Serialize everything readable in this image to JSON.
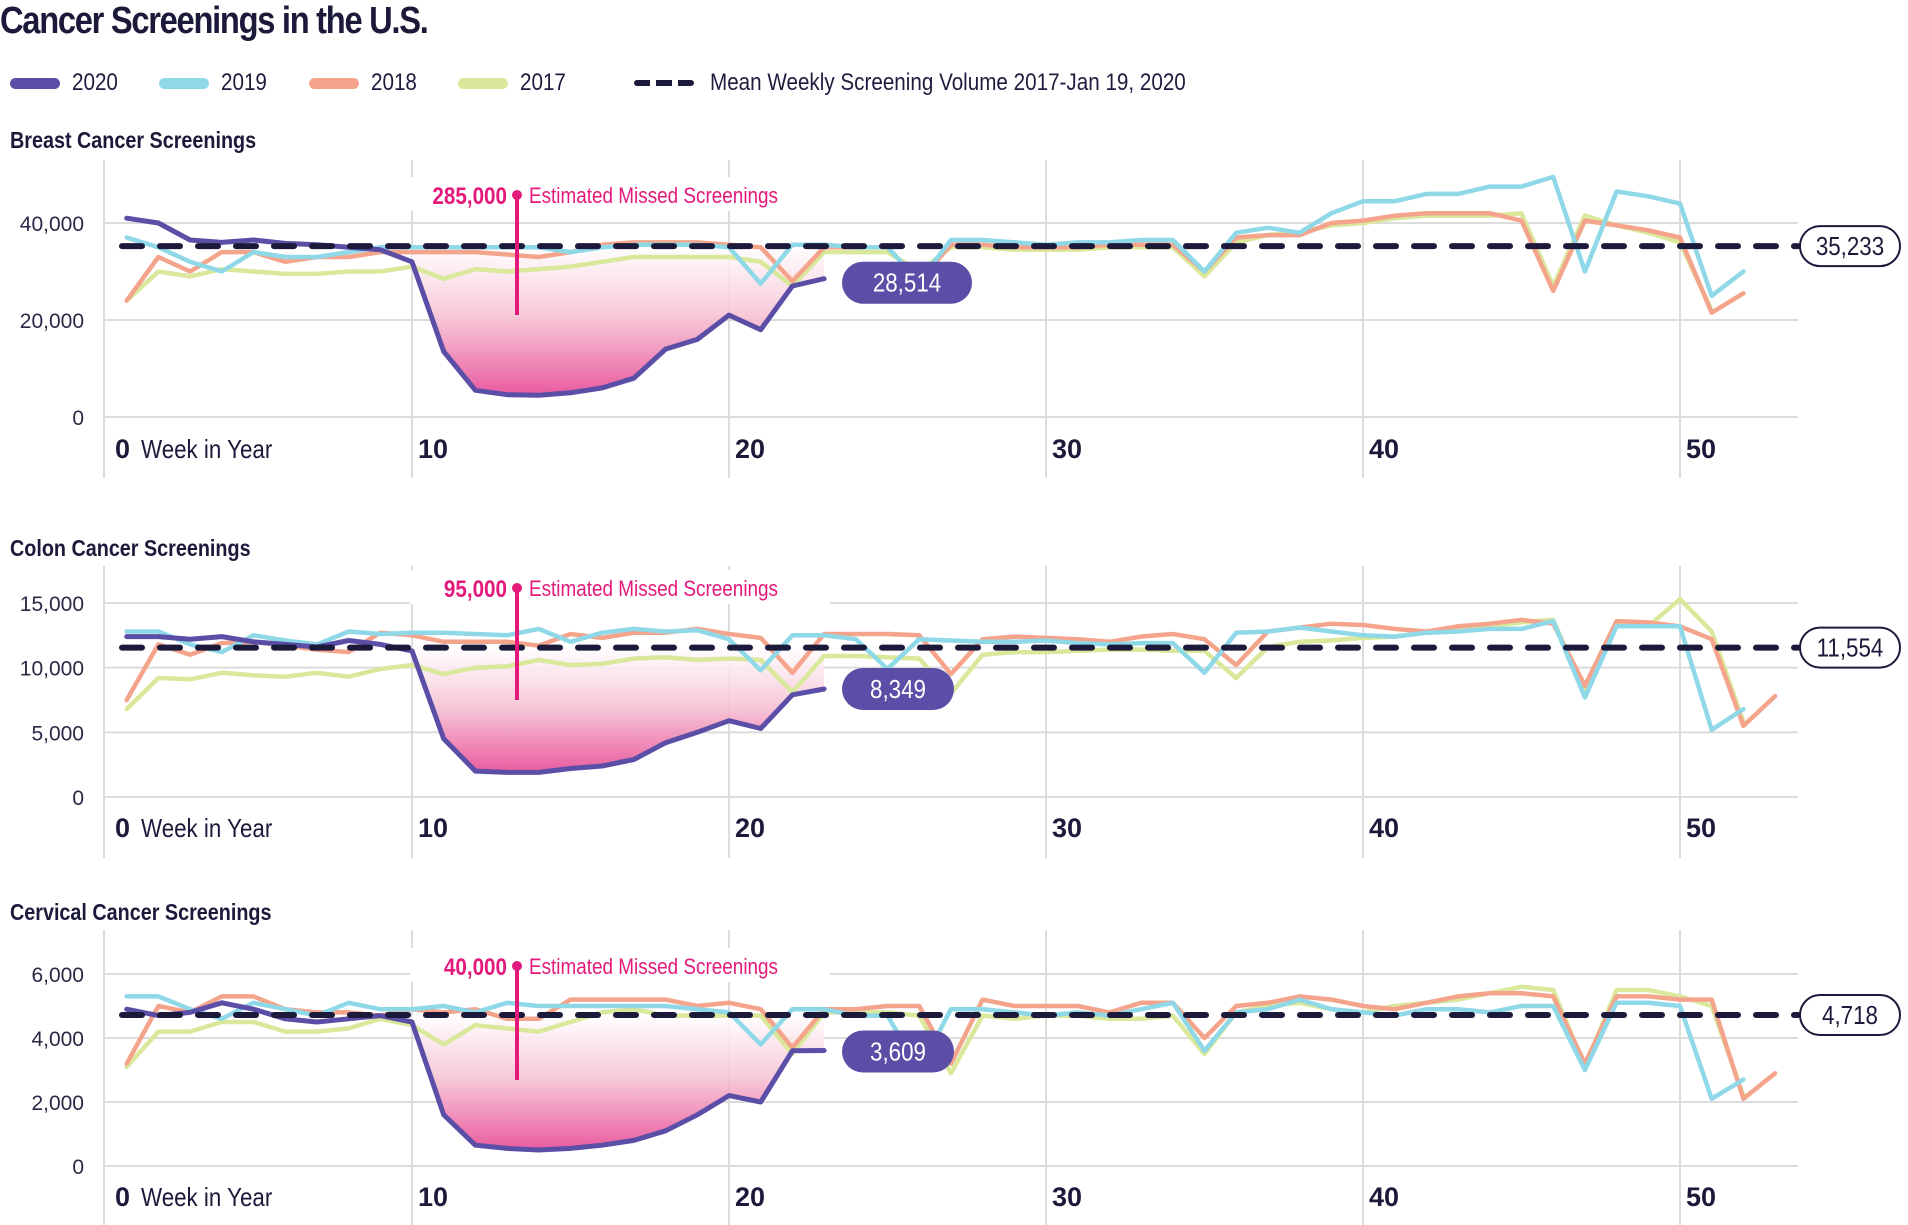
{
  "title": "Cancer Screenings in the U.S.",
  "legend": [
    {
      "label": "2020",
      "color": "#5a4ea6",
      "style": "solid"
    },
    {
      "label": "2019",
      "color": "#8fd8e8",
      "style": "solid"
    },
    {
      "label": "2018",
      "color": "#f5a48c",
      "style": "solid"
    },
    {
      "label": "2017",
      "color": "#d9e89a",
      "style": "solid"
    },
    {
      "label": "Mean Weekly Screening Volume 2017-Jan 19, 2020",
      "color": "#1c1a3a",
      "style": "dashed"
    }
  ],
  "annotation_color": "#e3197b",
  "chart_data": [
    {
      "type": "line",
      "title": "Breast Cancer Screenings",
      "xlabel": "Week in Year",
      "ylabel": "",
      "xlim": [
        0,
        53
      ],
      "ylim": [
        0,
        45000
      ],
      "x_ticks": [
        0,
        10,
        20,
        30,
        40,
        50
      ],
      "y_ticks": [
        0,
        20000,
        40000
      ],
      "y_tick_labels": [
        "0",
        "20,000",
        "40,000"
      ],
      "grid": true,
      "mean_value": 35233,
      "mean_label": "35,233",
      "last_2020_label": "28,514",
      "missed_value": "285,000",
      "missed_text": "Estimated Missed Screenings",
      "series": [
        {
          "name": "2020",
          "start_week": 1,
          "values": [
            41000,
            40000,
            36500,
            36000,
            36500,
            35800,
            35500,
            35000,
            34500,
            32000,
            13500,
            5500,
            4600,
            4500,
            5000,
            6000,
            8000,
            14000,
            16000,
            21000,
            18000,
            27000,
            28514
          ]
        },
        {
          "name": "2019",
          "start_week": 1,
          "values": [
            37000,
            35000,
            32000,
            30000,
            34000,
            33000,
            33000,
            34000,
            35000,
            35000,
            35000,
            35000,
            35000,
            35000,
            34000,
            35000,
            35500,
            35500,
            35500,
            35000,
            27500,
            35500,
            35500,
            35000,
            35000,
            28000,
            36500,
            36500,
            36000,
            35500,
            36000,
            36000,
            36500,
            36500,
            30000,
            38000,
            39000,
            38000,
            42000,
            44500,
            44500,
            46000,
            46000,
            47500,
            47500,
            49500,
            30000,
            46500,
            45500,
            44000,
            25000,
            30000
          ]
        },
        {
          "name": "2018",
          "start_week": 1,
          "values": [
            24000,
            33000,
            30000,
            34000,
            34000,
            32000,
            33000,
            33000,
            34000,
            34000,
            34000,
            34000,
            33500,
            33000,
            34000,
            35500,
            36000,
            36000,
            36000,
            35500,
            35000,
            28000,
            35000,
            35000,
            35000,
            28000,
            35500,
            35500,
            35000,
            35000,
            35000,
            35500,
            35500,
            35500,
            30000,
            37000,
            37500,
            37500,
            40000,
            40500,
            41500,
            42000,
            42000,
            42000,
            40500,
            26000,
            40500,
            39500,
            38500,
            37000,
            21500,
            25500
          ]
        },
        {
          "name": "2017",
          "start_week": 1,
          "values": [
            24000,
            30000,
            29000,
            30500,
            30000,
            29500,
            29500,
            30000,
            30000,
            31000,
            28500,
            30500,
            30000,
            30500,
            31000,
            32000,
            33000,
            33000,
            33000,
            33000,
            32000,
            27000,
            34000,
            34000,
            34000,
            30000,
            35000,
            35000,
            34500,
            34500,
            34500,
            35000,
            35000,
            35000,
            29000,
            36000,
            37500,
            38000,
            39500,
            40000,
            41000,
            41500,
            41500,
            41500,
            42000,
            27000,
            41500,
            39500,
            38000,
            36000,
            22000
          ]
        }
      ]
    },
    {
      "type": "line",
      "title": "Colon Cancer Screenings",
      "xlabel": "Week in Year",
      "ylabel": "",
      "xlim": [
        0,
        53
      ],
      "ylim": [
        0,
        16500
      ],
      "x_ticks": [
        0,
        10,
        20,
        30,
        40,
        50
      ],
      "y_ticks": [
        0,
        5000,
        10000,
        15000
      ],
      "y_tick_labels": [
        "0",
        "5,000",
        "10,000",
        "15,000"
      ],
      "grid": true,
      "mean_value": 11554,
      "mean_label": "11,554",
      "last_2020_label": "8,349",
      "missed_value": "95,000",
      "missed_text": "Estimated Missed Screenings",
      "series": [
        {
          "name": "2020",
          "start_week": 1,
          "values": [
            12400,
            12400,
            12200,
            12400,
            12000,
            11800,
            11600,
            12100,
            11800,
            11300,
            4500,
            2000,
            1900,
            1900,
            2200,
            2400,
            2900,
            4200,
            5000,
            5900,
            5300,
            7900,
            8349
          ]
        },
        {
          "name": "2019",
          "start_week": 1,
          "values": [
            12800,
            12800,
            11800,
            11200,
            12500,
            12100,
            11800,
            12800,
            12600,
            12700,
            12700,
            12600,
            12500,
            13000,
            12000,
            12700,
            13000,
            12800,
            12900,
            12200,
            9800,
            12500,
            12500,
            12200,
            9900,
            12200,
            12100,
            12000,
            12000,
            12100,
            11900,
            11800,
            11900,
            11900,
            9600,
            12700,
            12800,
            13100,
            12800,
            12500,
            12400,
            12700,
            12800,
            13000,
            13000,
            13600,
            7700,
            13200,
            13200,
            13200,
            5200,
            6800
          ]
        },
        {
          "name": "2018",
          "start_week": 1,
          "values": [
            7500,
            11800,
            11000,
            11900,
            12000,
            11700,
            11400,
            11200,
            12700,
            12500,
            12000,
            12000,
            12000,
            11700,
            12600,
            12300,
            12700,
            12700,
            13000,
            12600,
            12300,
            9600,
            12600,
            12600,
            12600,
            12500,
            9500,
            12200,
            12400,
            12300,
            12200,
            12000,
            12400,
            12600,
            12200,
            10200,
            12800,
            13100,
            13400,
            13300,
            13000,
            12800,
            13200,
            13400,
            13700,
            13400,
            8600,
            13600,
            13500,
            13200,
            12200,
            5500,
            7800
          ]
        },
        {
          "name": "2017",
          "start_week": 1,
          "values": [
            6800,
            9200,
            9100,
            9600,
            9400,
            9300,
            9600,
            9300,
            9900,
            10200,
            9500,
            10000,
            10100,
            10600,
            10200,
            10300,
            10700,
            10800,
            10600,
            10700,
            10600,
            8100,
            10900,
            10900,
            10800,
            10700,
            8000,
            11000,
            11200,
            11200,
            11300,
            11400,
            11400,
            11300,
            11300,
            9200,
            11600,
            12000,
            12100,
            12300,
            12400,
            12700,
            12900,
            13200,
            13500,
            13700,
            8000,
            13400,
            13200,
            15300,
            12800,
            5800
          ]
        }
      ]
    },
    {
      "type": "line",
      "title": "Cervical Cancer Screenings",
      "xlabel": "Week in Year",
      "ylabel": "",
      "xlim": [
        0,
        53
      ],
      "ylim": [
        0,
        6500
      ],
      "x_ticks": [
        0,
        10,
        20,
        30,
        40,
        50
      ],
      "y_ticks": [
        0,
        2000,
        4000,
        6000
      ],
      "y_tick_labels": [
        "0",
        "2,000",
        "4,000",
        "6,000"
      ],
      "grid": true,
      "mean_value": 4718,
      "mean_label": "4,718",
      "last_2020_label": "3,609",
      "missed_value": "40,000",
      "missed_text": "Estimated Missed Screenings",
      "series": [
        {
          "name": "2020",
          "start_week": 1,
          "values": [
            4900,
            4700,
            4800,
            5100,
            4900,
            4600,
            4500,
            4600,
            4700,
            4500,
            1600,
            650,
            550,
            500,
            550,
            650,
            800,
            1100,
            1600,
            2200,
            2000,
            3600,
            3609
          ]
        },
        {
          "name": "2019",
          "start_week": 1,
          "values": [
            5300,
            5300,
            4900,
            4600,
            5100,
            4900,
            4700,
            5100,
            4900,
            4900,
            5000,
            4800,
            5100,
            5000,
            5000,
            5000,
            5000,
            5000,
            4900,
            4800,
            3800,
            4900,
            4900,
            4700,
            4700,
            3000,
            4900,
            4900,
            4800,
            4700,
            4800,
            4700,
            4900,
            5100,
            3600,
            4800,
            4900,
            5200,
            4900,
            4800,
            4700,
            4900,
            4900,
            4800,
            5000,
            5000,
            3000,
            5100,
            5100,
            5000,
            2100,
            2700
          ]
        },
        {
          "name": "2018",
          "start_week": 1,
          "values": [
            3200,
            5000,
            4800,
            5300,
            5300,
            4900,
            4800,
            4800,
            4700,
            4900,
            4800,
            4900,
            4600,
            4600,
            5200,
            5200,
            5200,
            5200,
            5000,
            5100,
            4900,
            3700,
            4900,
            4900,
            5000,
            5000,
            3200,
            5200,
            5000,
            5000,
            5000,
            4800,
            5100,
            5100,
            4000,
            5000,
            5100,
            5300,
            5200,
            5000,
            4900,
            5100,
            5300,
            5400,
            5400,
            5300,
            3200,
            5300,
            5300,
            5200,
            5200,
            2100,
            2900
          ]
        },
        {
          "name": "2017",
          "start_week": 1,
          "values": [
            3100,
            4200,
            4200,
            4500,
            4500,
            4200,
            4200,
            4300,
            4600,
            4400,
            3800,
            4400,
            4300,
            4200,
            4500,
            4800,
            4900,
            4700,
            4700,
            4700,
            4700,
            3500,
            4800,
            4800,
            4800,
            4700,
            2900,
            4700,
            4600,
            4700,
            4700,
            4600,
            4600,
            4700,
            3500,
            4800,
            5000,
            5100,
            4900,
            4800,
            5000,
            5100,
            5200,
            5400,
            5600,
            5500,
            3100,
            5500,
            5500,
            5300,
            5000,
            2200
          ]
        }
      ]
    }
  ]
}
